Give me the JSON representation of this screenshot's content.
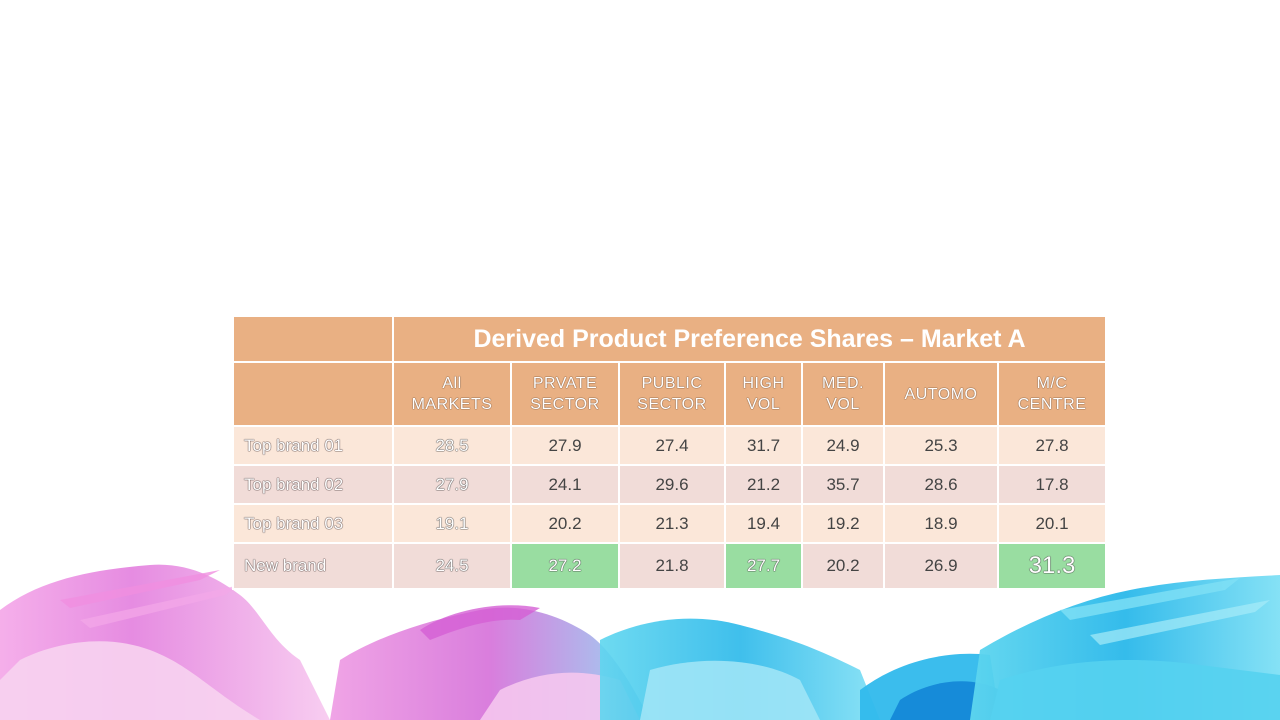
{
  "table": {
    "title": "Derived Product Preference Shares – Market A",
    "columns": [
      [
        "All",
        "MARKETS"
      ],
      [
        "PRVATE",
        "SECTOR"
      ],
      [
        "PUBLIC",
        "SECTOR"
      ],
      [
        "HIGH",
        "VOL"
      ],
      [
        "MED.",
        "VOL"
      ],
      [
        "AUTOMO"
      ],
      [
        "M/C",
        "CENTRE"
      ]
    ],
    "rows": [
      {
        "label": "Top brand 01",
        "values": [
          "28.5",
          "27.9",
          "27.4",
          "31.7",
          "24.9",
          "25.3",
          "27.8"
        ]
      },
      {
        "label": "Top brand 02",
        "values": [
          "27.9",
          "24.1",
          "29.6",
          "21.2",
          "35.7",
          "28.6",
          "17.8"
        ]
      },
      {
        "label": "Top brand 03",
        "values": [
          "19.1",
          "20.2",
          "21.3",
          "19.4",
          "19.2",
          "18.9",
          "20.1"
        ]
      },
      {
        "label": "New brand",
        "values": [
          "24.5",
          "27.2",
          "21.8",
          "27.7",
          "20.2",
          "26.9",
          "31.3"
        ]
      }
    ],
    "highlight_color": "#99dda1",
    "highlighted_cells": [
      {
        "row": 3,
        "col": 1
      },
      {
        "row": 3,
        "col": 3
      },
      {
        "row": 3,
        "col": 6
      }
    ]
  }
}
